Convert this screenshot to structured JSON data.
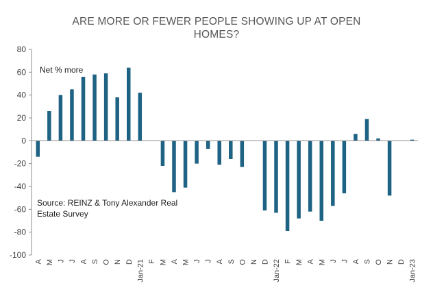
{
  "chart_data": {
    "type": "bar",
    "title_lines": [
      "ARE MORE OR FEWER PEOPLE SHOWING UP AT OPEN",
      "HOMES?"
    ],
    "xlabel": "",
    "ylabel": "",
    "ylim": [
      -100,
      80
    ],
    "yticks": [
      80,
      60,
      40,
      20,
      0,
      -20,
      -40,
      -60,
      -80,
      -100
    ],
    "grid": false,
    "bar_color": "#1f6384",
    "categories": [
      "A",
      "M",
      "J",
      "J",
      "A",
      "S",
      "O",
      "N",
      "D",
      "Jan-21",
      "F",
      "M",
      "A",
      "M",
      "J",
      "J",
      "A",
      "S",
      "O",
      "N",
      "D",
      "Jan-22",
      "F",
      "M",
      "A",
      "M",
      "J",
      "J",
      "A",
      "S",
      "O",
      "N",
      "D",
      "Jan-23"
    ],
    "values": [
      -14,
      26,
      40,
      45,
      56,
      58,
      59,
      38,
      64,
      42,
      null,
      -22,
      -45,
      -41,
      -20,
      -7,
      -21,
      -16,
      -23,
      null,
      -61,
      -63,
      -79,
      -68,
      -62,
      -70,
      -57,
      -46,
      6,
      19,
      2,
      -48,
      null,
      1
    ],
    "annotations": [
      {
        "text": "Net % more"
      },
      {
        "text": "Source: REINZ & Tony Alexander Real Estate Survey",
        "lines": [
          "Source: REINZ & Tony Alexander Real",
          "Estate Survey"
        ]
      }
    ]
  }
}
